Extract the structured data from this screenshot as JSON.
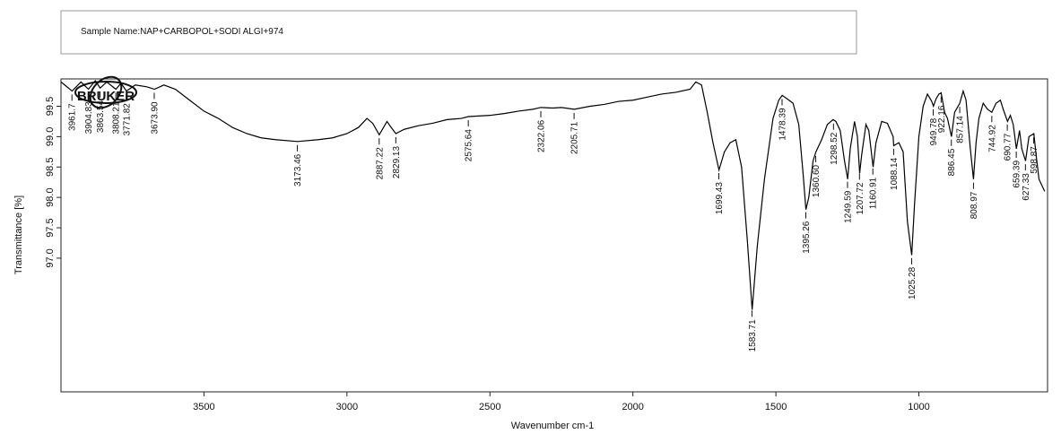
{
  "chart_data": {
    "type": "line",
    "sample_name": "Sample Name:NAP+CARBOPOL+SODI ALGI+974",
    "logo": "BRUKER",
    "x_label": "Wavenumber cm-1",
    "y_label": "Transmittance [%]",
    "xlim": [
      4000,
      550
    ],
    "ylim": [
      94.8,
      99.95
    ],
    "xticks": [
      3500,
      3000,
      2500,
      2000,
      1500,
      1000
    ],
    "yticks": [
      99.5,
      {
        "value": 99.0,
        "label": "99.0"
      },
      98.5,
      {
        "value": 98.0,
        "label": "98.0"
      },
      97.5,
      {
        "value": 97.0,
        "label": "97.0"
      }
    ],
    "x": [
      4000,
      3961,
      3930,
      3904,
      3880,
      3863,
      3840,
      3808,
      3790,
      3771,
      3740,
      3700,
      3673,
      3640,
      3600,
      3550,
      3500,
      3450,
      3400,
      3350,
      3300,
      3250,
      3173,
      3100,
      3050,
      3000,
      2960,
      2930,
      2910,
      2887,
      2860,
      2845,
      2829,
      2800,
      2750,
      2700,
      2650,
      2600,
      2575,
      2500,
      2450,
      2400,
      2350,
      2322,
      2280,
      2250,
      2205,
      2150,
      2100,
      2050,
      2000,
      1950,
      1900,
      1850,
      1800,
      1780,
      1760,
      1740,
      1720,
      1699,
      1680,
      1660,
      1640,
      1620,
      1600,
      1583,
      1565,
      1540,
      1510,
      1490,
      1478,
      1460,
      1440,
      1420,
      1405,
      1395,
      1385,
      1370,
      1360,
      1340,
      1320,
      1300,
      1290,
      1275,
      1260,
      1249,
      1240,
      1225,
      1215,
      1207,
      1200,
      1185,
      1175,
      1160,
      1150,
      1130,
      1110,
      1090,
      1088,
      1070,
      1055,
      1040,
      1025,
      1015,
      1000,
      985,
      970,
      955,
      949,
      940,
      930,
      922,
      910,
      900,
      886,
      875,
      857,
      845,
      835,
      820,
      809,
      800,
      790,
      775,
      760,
      745,
      730,
      715,
      705,
      690,
      680,
      670,
      659,
      648,
      640,
      627,
      615,
      598,
      590,
      580,
      560
    ],
    "series": [
      {
        "name": "Transmittance",
        "color": "#000000",
        "values": [
          99.9,
          99.75,
          99.9,
          99.78,
          99.92,
          99.8,
          99.9,
          99.78,
          99.88,
          99.75,
          99.85,
          99.82,
          99.78,
          99.85,
          99.78,
          99.6,
          99.42,
          99.3,
          99.15,
          99.05,
          98.98,
          98.95,
          98.92,
          98.95,
          98.98,
          99.05,
          99.15,
          99.3,
          99.22,
          99.03,
          99.25,
          99.15,
          99.05,
          99.12,
          99.18,
          99.22,
          99.28,
          99.3,
          99.33,
          99.35,
          99.38,
          99.42,
          99.45,
          99.48,
          99.47,
          99.48,
          99.45,
          99.5,
          99.53,
          99.58,
          99.6,
          99.65,
          99.7,
          99.73,
          99.78,
          99.9,
          99.85,
          99.4,
          98.9,
          98.45,
          98.75,
          98.9,
          98.95,
          98.5,
          97.3,
          96.15,
          97.2,
          98.3,
          99.3,
          99.6,
          99.68,
          99.62,
          99.55,
          99.2,
          98.4,
          97.8,
          98.0,
          98.6,
          98.75,
          98.95,
          99.2,
          99.28,
          99.25,
          99.1,
          98.6,
          98.3,
          98.8,
          99.25,
          99.0,
          98.4,
          98.7,
          99.2,
          99.1,
          98.5,
          98.9,
          99.25,
          99.22,
          99.0,
          98.85,
          98.9,
          98.75,
          97.6,
          97.05,
          97.9,
          99.0,
          99.5,
          99.7,
          99.58,
          99.5,
          99.62,
          99.7,
          99.72,
          99.4,
          99.3,
          99.0,
          99.4,
          99.55,
          99.75,
          99.6,
          98.8,
          98.3,
          98.9,
          99.3,
          99.55,
          99.45,
          99.4,
          99.55,
          99.6,
          99.45,
          99.25,
          99.35,
          99.2,
          98.8,
          99.1,
          98.8,
          98.6,
          99.0,
          99.05,
          98.7,
          98.3,
          98.1
        ]
      }
    ],
    "peaks": [
      3961.7,
      3904.83,
      3863.54,
      3808.21,
      3771.82,
      {
        "value": 3673.9,
        "label": "3673.90"
      },
      3173.46,
      2887.22,
      2829.13,
      2575.64,
      2322.06,
      2205.71,
      1699.43,
      1583.71,
      1478.39,
      1395.26,
      {
        "value": 1360.6,
        "label": "1360.60"
      },
      1298.52,
      1249.59,
      1207.72,
      1160.91,
      1088.14,
      1025.28,
      949.78,
      922.16,
      886.45,
      857.14,
      808.97,
      744.92,
      690.77,
      659.39,
      627.33,
      598.87
    ]
  }
}
